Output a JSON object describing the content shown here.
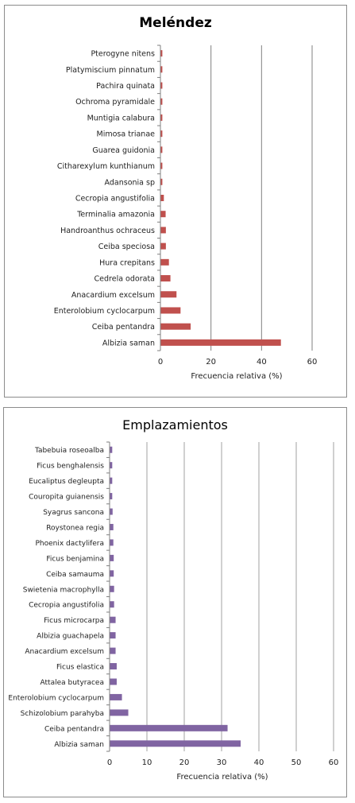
{
  "chart_data": [
    {
      "type": "bar",
      "orientation": "horizontal",
      "title": "Meléndez",
      "xlabel": "Frecuencia relativa (%)",
      "ylabel": "",
      "xlim": [
        0,
        60
      ],
      "xticks": [
        0,
        20,
        40,
        60
      ],
      "grid": "vertical",
      "color": "#c0504d",
      "categories": [
        "Pterogyne nitens",
        "Platymiscium pinnatum",
        "Pachira quinata",
        "Ochroma pyramidale",
        "Muntigia calabura",
        "Mimosa trianae",
        "Guarea guidonia",
        "Citharexylum kunthianum",
        "Adansonia sp",
        "Cecropia angustifolia",
        "Terminalia amazonia",
        "Handroanthus ochraceus",
        "Ceiba speciosa",
        "Hura crepitans",
        "Cedrela odorata",
        "Anacardium excelsum",
        "Enterolobium cyclocarpum",
        "Ceiba pentandra",
        "Albizia saman"
      ],
      "values": [
        0.6,
        0.6,
        0.6,
        0.6,
        0.6,
        0.6,
        0.6,
        0.6,
        0.6,
        1.2,
        1.9,
        2.0,
        2.0,
        3.2,
        3.8,
        6.2,
        7.8,
        11.8,
        47.5
      ]
    },
    {
      "type": "bar",
      "orientation": "horizontal",
      "title": "Emplazamientos",
      "xlabel": "Frecuencia relativa (%)",
      "ylabel": "",
      "xlim": [
        0,
        60
      ],
      "xticks": [
        0,
        10,
        20,
        30,
        40,
        50,
        60
      ],
      "grid": "vertical",
      "color": "#8064a2",
      "categories": [
        "Tabebuia roseoalba",
        "Ficus benghalensis",
        "Eucaliptus degleupta",
        "Couropita guianensis",
        "Syagrus sancona",
        "Roystonea regia",
        "Phoenix dactylifera",
        "Ficus benjamina",
        "Ceiba samauma",
        "Swietenia macrophylla",
        "Cecropia angustifolia",
        "Ficus microcarpa",
        "Albizia guachapela",
        "Anacardium excelsum",
        "Ficus elastica",
        "Attalea butyracea",
        "Enterolobium cyclocarpum",
        "Schizolobium parahyba",
        "Ceiba pentandra",
        "Albizia saman"
      ],
      "values": [
        0.6,
        0.6,
        0.6,
        0.6,
        0.7,
        0.9,
        0.9,
        1.0,
        1.0,
        1.1,
        1.1,
        1.5,
        1.5,
        1.5,
        1.8,
        1.8,
        3.2,
        4.9,
        31.5,
        35.0
      ]
    }
  ]
}
